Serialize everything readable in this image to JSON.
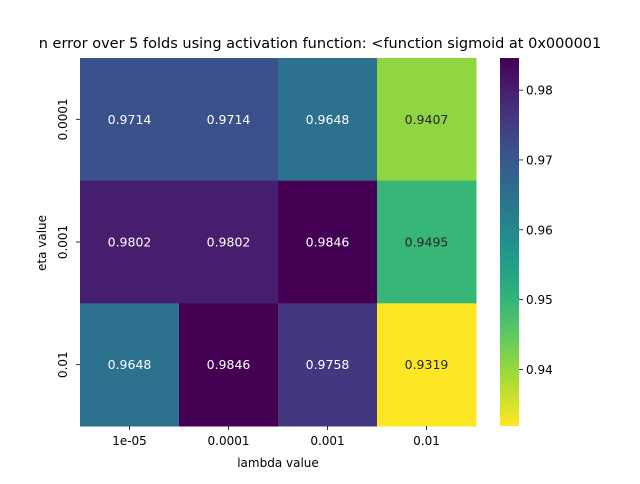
{
  "chart_data": {
    "type": "heatmap",
    "title": "n error over 5 folds using activation function: <function sigmoid at 0x000001",
    "xlabel": "lambda value",
    "ylabel": "eta value",
    "x_categories": [
      "1e-05",
      "0.0001",
      "0.001",
      "0.01"
    ],
    "y_categories": [
      "0.0001",
      "0.001",
      "0.01"
    ],
    "values": [
      [
        0.9714,
        0.9714,
        0.9648,
        0.9407
      ],
      [
        0.9802,
        0.9802,
        0.9846,
        0.9495
      ],
      [
        0.9648,
        0.9846,
        0.9758,
        0.9319
      ]
    ],
    "value_labels": [
      [
        "0.9714",
        "0.9714",
        "0.9648",
        "0.9407"
      ],
      [
        "0.9802",
        "0.9802",
        "0.9846",
        "0.9495"
      ],
      [
        "0.9648",
        "0.9846",
        "0.9758",
        "0.9319"
      ]
    ],
    "colormap": "viridis_r",
    "color_range": [
      0.9319,
      0.9846
    ],
    "colorbar_ticks": [
      "0.98",
      "0.97",
      "0.96",
      "0.95",
      "0.94"
    ],
    "colorbar_tick_values": [
      0.98,
      0.97,
      0.96,
      0.95,
      0.94
    ],
    "colors": {
      "dark_text": "#262626",
      "light_text": "#ffffff"
    }
  }
}
